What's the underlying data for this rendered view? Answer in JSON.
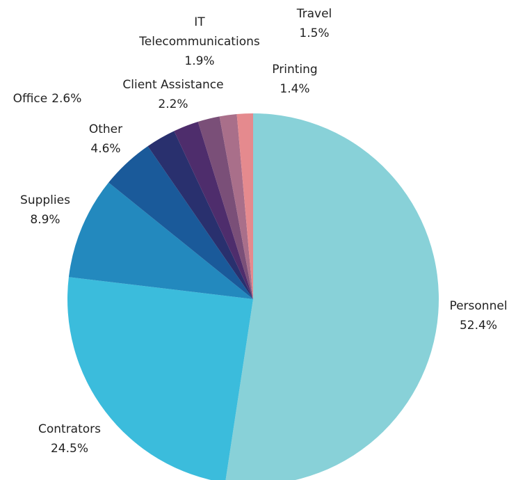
{
  "chart_data": {
    "type": "pie",
    "categories": [
      "Personnel",
      "Contrators",
      "Supplies",
      "Other",
      "Office",
      "Client Assistance",
      "IT Telecommunications",
      "Travel",
      "Printing"
    ],
    "values": [
      52.4,
      24.5,
      8.9,
      4.6,
      2.6,
      2.2,
      1.9,
      1.5,
      1.4
    ],
    "value_labels": [
      "52.4%",
      "24.5%",
      "8.9%",
      "4.6%",
      "2.6%",
      "2.2%",
      "1.9%",
      "1.5%",
      "1.4%"
    ],
    "colors": [
      "#88d1d8",
      "#3bbcdc",
      "#2389be",
      "#1a5a9a",
      "#29306e",
      "#4e2d6c",
      "#7a4f78",
      "#a96f8a",
      "#e58a8e"
    ]
  }
}
